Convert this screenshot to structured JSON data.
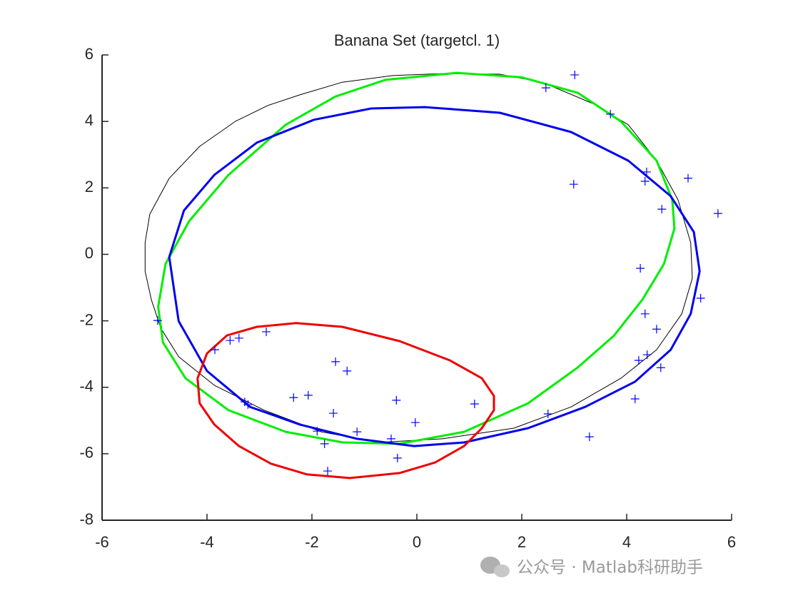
{
  "chart_data": {
    "type": "scatter",
    "title": "Banana Set (targetcl. 1)",
    "xlim": [
      -6,
      6
    ],
    "ylim": [
      -8,
      6
    ],
    "xticks": [
      -6,
      -4,
      -2,
      0,
      2,
      4,
      6
    ],
    "yticks": [
      -8,
      -6,
      -4,
      -2,
      0,
      2,
      4,
      6
    ],
    "grid": false,
    "series": [
      {
        "type": "line",
        "closed": true,
        "color": "#000000",
        "width": 1,
        "x": [
          0.49,
          1.58,
          2.39,
          3.35,
          4.03,
          4.57,
          4.98,
          5.22,
          5.25,
          5.05,
          4.57,
          3.89,
          2.94,
          1.85,
          0.49,
          -0.73,
          -1.82,
          -2.91,
          -3.86,
          -4.54,
          -4.88,
          -5.06,
          -5.18,
          -5.18,
          -5.09,
          -4.72,
          -4.14,
          -3.46,
          -2.84,
          -2.23,
          -1.42,
          -0.46
        ],
        "values": [
          5.44,
          5.42,
          5.18,
          4.54,
          3.9,
          2.82,
          1.64,
          0.35,
          -0.72,
          -1.79,
          -2.87,
          -3.73,
          -4.59,
          -5.23,
          -5.55,
          -5.66,
          -5.34,
          -4.69,
          -3.94,
          -3.08,
          -2.22,
          -1.37,
          -0.51,
          0.35,
          1.21,
          2.29,
          3.25,
          4.0,
          4.48,
          4.8,
          5.18,
          5.38
        ]
      },
      {
        "type": "line",
        "closed": true,
        "color": "#00ee00",
        "width": 3,
        "x": [
          0.76,
          1.99,
          3.07,
          3.89,
          4.57,
          4.87,
          4.91,
          4.71,
          4.3,
          3.76,
          3.07,
          2.12,
          0.9,
          -0.33,
          -1.41,
          -2.5,
          -3.59,
          -4.41,
          -4.84,
          -4.93,
          -4.79,
          -4.34,
          -3.59,
          -2.5,
          -1.55,
          -0.6
        ],
        "values": [
          5.46,
          5.33,
          4.86,
          4.0,
          2.82,
          1.64,
          0.78,
          -0.29,
          -1.36,
          -2.44,
          -3.4,
          -4.48,
          -5.34,
          -5.7,
          -5.66,
          -5.34,
          -4.69,
          -3.73,
          -2.65,
          -1.58,
          -0.29,
          1.0,
          2.39,
          3.9,
          4.75,
          5.25
        ]
      },
      {
        "type": "line",
        "closed": true,
        "color": "#0000ee",
        "width": 3,
        "x": [
          0.15,
          1.58,
          2.94,
          4.03,
          4.84,
          5.28,
          5.39,
          5.22,
          4.84,
          4.16,
          3.21,
          2.12,
          0.9,
          -0.05,
          -1.14,
          -2.23,
          -3.18,
          -4.0,
          -4.54,
          -4.72,
          -4.44,
          -3.86,
          -3.05,
          -1.96,
          -0.87
        ],
        "values": [
          4.43,
          4.26,
          3.68,
          2.82,
          1.75,
          0.67,
          -0.51,
          -1.79,
          -2.87,
          -3.83,
          -4.59,
          -5.23,
          -5.66,
          -5.77,
          -5.55,
          -5.12,
          -4.59,
          -3.51,
          -2.01,
          -0.08,
          1.32,
          2.39,
          3.36,
          4.05,
          4.39
        ]
      },
      {
        "type": "line",
        "closed": true,
        "color": "#ee0000",
        "width": 3,
        "x": [
          -2.3,
          -1.42,
          -0.33,
          0.63,
          1.24,
          1.47,
          1.47,
          1.24,
          0.9,
          0.35,
          -0.33,
          -1.28,
          -2.1,
          -2.78,
          -3.39,
          -3.86,
          -4.14,
          -4.18,
          -4.0,
          -3.62,
          -3.05
        ],
        "values": [
          -2.07,
          -2.18,
          -2.61,
          -3.19,
          -3.73,
          -4.26,
          -4.69,
          -5.23,
          -5.77,
          -6.26,
          -6.58,
          -6.73,
          -6.62,
          -6.3,
          -5.77,
          -5.12,
          -4.48,
          -3.73,
          -2.98,
          -2.44,
          -2.18
        ]
      },
      {
        "type": "scatter",
        "marker": "+",
        "color": "#0000ff",
        "x": [
          3.01,
          2.46,
          3.69,
          4.38,
          4.35,
          5.17,
          2.99,
          4.67,
          5.74,
          4.26,
          5.41,
          4.35,
          4.57,
          4.39,
          4.23,
          4.65,
          4.16,
          2.5,
          3.29,
          -4.94,
          -3.85,
          -3.56,
          -3.39,
          -2.87,
          -3.28,
          -3.22,
          -1.55,
          -1.33,
          -2.35,
          -2.07,
          -1.59,
          -0.39,
          -0.03,
          1.1,
          -1.9,
          -1.14,
          -0.49,
          -1.76,
          -0.37,
          -1.7
        ],
        "values": [
          5.4,
          5.01,
          4.22,
          2.48,
          2.2,
          2.29,
          2.11,
          1.36,
          1.23,
          -0.42,
          -1.32,
          -1.79,
          -2.25,
          -3.02,
          -3.19,
          -3.41,
          -4.35,
          -4.8,
          -5.49,
          -1.99,
          -2.87,
          -2.59,
          -2.52,
          -2.33,
          -4.44,
          -4.52,
          -3.23,
          -3.51,
          -4.31,
          -4.24,
          -4.78,
          -4.39,
          -5.06,
          -4.5,
          -5.32,
          -5.34,
          -5.55,
          -5.7,
          -6.13,
          -6.52
        ]
      }
    ]
  },
  "watermark": "公众号 · Matlab科研助手"
}
